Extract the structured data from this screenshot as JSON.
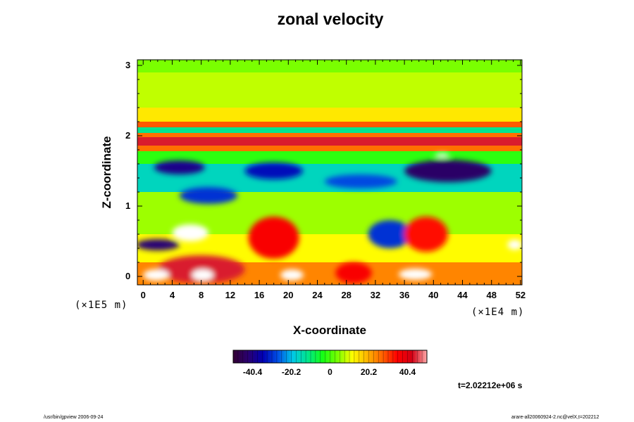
{
  "chart_data": {
    "type": "heatmap",
    "title": "zonal velocity",
    "xlabel": "X-coordinate",
    "ylabel": "Z-coordinate",
    "x_unit": "(×1E4 m)",
    "y_unit": "(×1E5 m)",
    "x_ticks": [
      0,
      4,
      8,
      12,
      16,
      20,
      24,
      28,
      32,
      36,
      40,
      44,
      48,
      52
    ],
    "y_ticks": [
      0,
      1,
      2,
      3
    ],
    "xlim": [
      -0.8,
      52.2
    ],
    "ylim": [
      -0.12,
      3.08
    ],
    "grid": false,
    "colorbar": {
      "ticks": [
        "-40.4",
        "-20.2",
        "0",
        "20.2",
        "40.4"
      ],
      "range": [
        -50.5,
        50.5
      ],
      "colors": [
        "#330033",
        "#2a0070",
        "#0000b4",
        "#0050e6",
        "#00c8e6",
        "#00e68c",
        "#14ff14",
        "#78ff00",
        "#ffff00",
        "#ffb400",
        "#ff6400",
        "#ff0000",
        "#d20014",
        "#ffaaaa"
      ]
    },
    "bands": [
      {
        "z": [
          2.9,
          3.08
        ],
        "value": 4
      },
      {
        "z": [
          2.4,
          2.9
        ],
        "value": 8
      },
      {
        "z": [
          2.2,
          2.4
        ],
        "value": 14
      },
      {
        "z": [
          2.12,
          2.2
        ],
        "value": 28
      },
      {
        "z": [
          2.04,
          2.12
        ],
        "value": -12
      },
      {
        "z": [
          1.98,
          2.04
        ],
        "value": 26
      },
      {
        "z": [
          1.86,
          1.98
        ],
        "value": 44
      },
      {
        "z": [
          1.78,
          1.86
        ],
        "value": 26
      },
      {
        "z": [
          1.6,
          1.78
        ],
        "value": -2
      },
      {
        "z": [
          1.2,
          1.6
        ],
        "value": -16
      },
      {
        "z": [
          0.6,
          1.2
        ],
        "value": 6
      },
      {
        "z": [
          0.2,
          0.6
        ],
        "value": 12
      },
      {
        "z": [
          -0.12,
          0.2
        ],
        "value": 24
      }
    ],
    "features": [
      {
        "x": 5,
        "z": 1.55,
        "rx": 3.5,
        "rz": 0.1,
        "value": -40
      },
      {
        "x": 18,
        "z": 1.5,
        "rx": 4,
        "rz": 0.12,
        "value": -34
      },
      {
        "x": 42,
        "z": 1.5,
        "rx": 6,
        "rz": 0.16,
        "value": -44
      },
      {
        "x": 30,
        "z": 1.35,
        "rx": 5,
        "rz": 0.1,
        "value": -28
      },
      {
        "x": 9,
        "z": 1.15,
        "rx": 4,
        "rz": 0.12,
        "value": -30
      },
      {
        "x": 2,
        "z": 0.45,
        "rx": 3,
        "rz": 0.08,
        "value": -42
      },
      {
        "x": 34,
        "z": 0.6,
        "rx": 3,
        "rz": 0.2,
        "value": -30
      },
      {
        "x": 18,
        "z": 0.55,
        "rx": 3.5,
        "rz": 0.3,
        "value": 36
      },
      {
        "x": 39,
        "z": 0.6,
        "rx": 3,
        "rz": 0.25,
        "value": 34
      },
      {
        "x": 8,
        "z": 0.1,
        "rx": 6,
        "rz": 0.2,
        "value": 44
      },
      {
        "x": 29,
        "z": 0.05,
        "rx": 2.5,
        "rz": 0.15,
        "value": 36
      },
      {
        "x": 6.5,
        "z": 0.62,
        "rx": 2.5,
        "rz": 0.12,
        "value": 60
      },
      {
        "x": 1.8,
        "z": 0.02,
        "rx": 1.8,
        "rz": 0.08,
        "value": 60
      },
      {
        "x": 8.2,
        "z": 0.02,
        "rx": 1.5,
        "rz": 0.08,
        "value": 60
      },
      {
        "x": 20.5,
        "z": 0.02,
        "rx": 1.6,
        "rz": 0.08,
        "value": 60
      },
      {
        "x": 37.5,
        "z": 0.03,
        "rx": 2.3,
        "rz": 0.08,
        "value": 60
      },
      {
        "x": 51.2,
        "z": 0.45,
        "rx": 1,
        "rz": 0.07,
        "value": 60
      },
      {
        "x": 41.2,
        "z": 1.72,
        "rx": 1,
        "rz": 0.03,
        "value": 60
      }
    ]
  },
  "annotations": {
    "time": "t=2.02212e+06 s",
    "footer_left": "/usr/bin/gpview 2006-09-24",
    "footer_right": "arare-all20060924-2.nc@velX,t=202212"
  }
}
